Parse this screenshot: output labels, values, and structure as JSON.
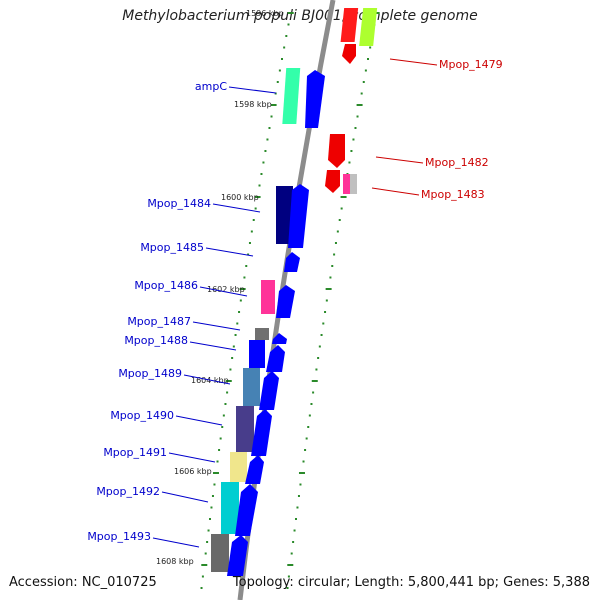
{
  "title": "Methylobacterium populi BJ001, complete genome",
  "accession": "Accession: NC_010725",
  "topology": "Topology: circular; Length: 5,800,441 bp; Genes: 5,388",
  "forward_genes": [
    "ampC",
    "Mpop_1484",
    "Mpop_1485",
    "Mpop_1486",
    "Mpop_1487",
    "Mpop_1488",
    "Mpop_1489",
    "Mpop_1490",
    "Mpop_1491",
    "Mpop_1492",
    "Mpop_1493"
  ],
  "reverse_genes": [
    "Mpop_1479",
    "Mpop_1482",
    "Mpop_1483"
  ],
  "kbp_ticks": [
    "1596 kbp",
    "1598 kbp",
    "1600 kbp",
    "1602 kbp",
    "1604 kbp",
    "1606 kbp",
    "1608 kbp"
  ],
  "colors": {
    "forward_label": "#0000cc",
    "reverse_label": "#cc0000",
    "forward_arrow": "#0000ff",
    "reverse_arrow": "#ee0000",
    "backbone": "#888888",
    "tick": "#2a8a2a",
    "cog_colors": [
      "#33ffaa",
      "#000080",
      "#ff3399",
      "#808080",
      "#0000ff",
      "#4682b4",
      "#483d8b",
      "#f0e68c",
      "#00ced1",
      "#696969",
      "#ff0000",
      "#adff2f",
      "#c0c0c0"
    ]
  }
}
